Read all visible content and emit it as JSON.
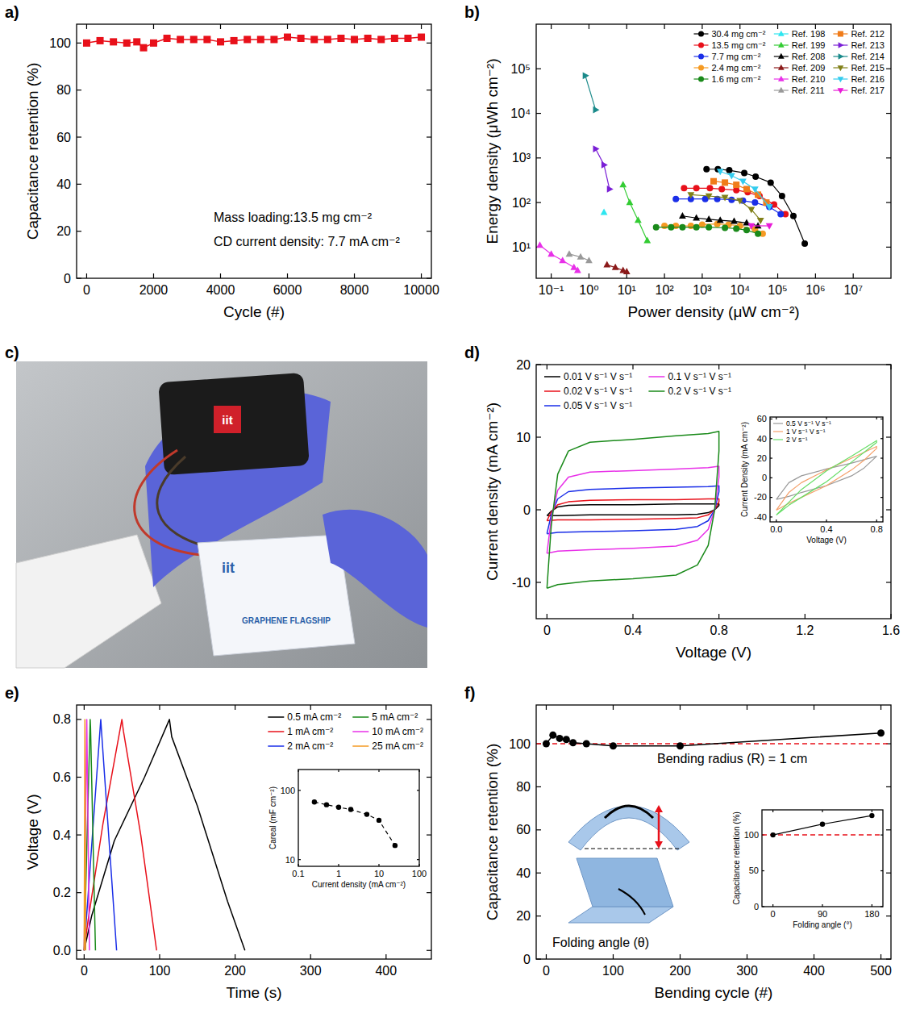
{
  "chart_data": [
    {
      "panel": "a)",
      "type": "line",
      "x_label": "Cycle (#)",
      "y_label": "Capacitance retention (%)",
      "x": [
        0,
        400,
        800,
        1200,
        1500,
        1700,
        2000,
        2400,
        2800,
        3200,
        3600,
        4000,
        4400,
        4800,
        5200,
        5600,
        6000,
        6400,
        6800,
        7200,
        7600,
        8000,
        8400,
        8800,
        9200,
        9600,
        10000
      ],
      "series": [
        {
          "color": "#e8101a",
          "marker": "square",
          "values": [
            100,
            101,
            100.5,
            100,
            100.5,
            98,
            100,
            102,
            101.5,
            101.5,
            101.5,
            100.5,
            101,
            101.5,
            101.5,
            101.5,
            102.5,
            102,
            101.5,
            101.5,
            102,
            101.5,
            102,
            101.5,
            102,
            102,
            102.5
          ]
        }
      ],
      "xlim": [
        -300,
        10300
      ],
      "xticks": [
        0,
        2000,
        4000,
        6000,
        8000,
        10000
      ],
      "ylim": [
        0,
        108
      ],
      "yticks": [
        0,
        20,
        40,
        60,
        80,
        100
      ],
      "annotations": [
        "Mass loading:13.5 mg cm⁻²",
        "CD current density: 7.7 mA cm⁻²"
      ]
    },
    {
      "panel": "b)",
      "type": "line",
      "log": true,
      "legend": "upper right",
      "x_label": "Power density (μW cm⁻²)",
      "y_label": "Energy density (μWh cm⁻²)",
      "series": [
        {
          "name": "30.4 mg cm⁻²",
          "color": "#000000",
          "marker": "circle",
          "x": [
            1300,
            2600,
            5200,
            13000,
            26000,
            65000,
            130000,
            260000,
            520000
          ],
          "values": [
            560,
            560,
            530,
            460,
            380,
            280,
            140,
            50,
            12
          ]
        },
        {
          "name": "13.5 mg cm⁻²",
          "color": "#e8101a",
          "marker": "circle",
          "x": [
            330,
            700,
            1600,
            3300,
            8000,
            16000,
            33000,
            80000,
            160000
          ],
          "values": [
            210,
            210,
            210,
            200,
            190,
            170,
            140,
            90,
            55
          ]
        },
        {
          "name": "7.7 mg cm⁻²",
          "color": "#1a2ee8",
          "marker": "circle",
          "x": [
            200,
            500,
            1200,
            2500,
            6000,
            12000,
            25000,
            60000,
            120000
          ],
          "values": [
            120,
            120,
            120,
            120,
            115,
            110,
            100,
            80,
            55
          ]
        },
        {
          "name": "2.4 mg cm⁻²",
          "color": "#f59a23",
          "marker": "circle",
          "x": [
            100,
            200,
            500,
            1000,
            2500,
            5000,
            10000,
            25000,
            40000
          ],
          "values": [
            30,
            30,
            30,
            32,
            33,
            32,
            30,
            25,
            20
          ]
        },
        {
          "name": "1.6 mg cm⁻²",
          "color": "#1a8a1a",
          "marker": "circle",
          "x": [
            60,
            150,
            300,
            700,
            1500,
            4000,
            8000,
            15000,
            30000
          ],
          "values": [
            28,
            28,
            28,
            28,
            28,
            27,
            26,
            24,
            20
          ]
        },
        {
          "name": "Ref. 198",
          "color": "#2ee6f0",
          "marker": "triangle-up",
          "x": [
            2.5
          ],
          "values": [
            60
          ]
        },
        {
          "name": "Ref. 199",
          "color": "#33cc33",
          "marker": "triangle-up",
          "x": [
            8,
            12,
            20,
            35
          ],
          "values": [
            250,
            100,
            40,
            14
          ]
        },
        {
          "name": "Ref. 208",
          "color": "#000000",
          "marker": "triangle-up",
          "x": [
            300,
            700,
            1500,
            3000,
            7000,
            15000,
            30000
          ],
          "values": [
            50,
            45,
            42,
            40,
            38,
            35,
            30
          ]
        },
        {
          "name": "Ref. 209",
          "color": "#8b1a1a",
          "marker": "triangle-up",
          "x": [
            3,
            5,
            8,
            10
          ],
          "values": [
            4,
            3.5,
            3,
            2.8
          ]
        },
        {
          "name": "Ref. 210",
          "color": "#e830e8",
          "marker": "triangle-up",
          "x": [
            0.05,
            0.1,
            0.2,
            0.4,
            0.5
          ],
          "values": [
            11,
            7,
            5,
            3.5,
            3
          ]
        },
        {
          "name": "Ref. 211",
          "color": "#999999",
          "marker": "triangle-up",
          "x": [
            0.3,
            0.6,
            1
          ],
          "values": [
            7,
            6,
            5
          ]
        },
        {
          "name": "Ref. 212",
          "color": "#f07c1a",
          "marker": "square",
          "x": [
            2000,
            4000,
            8000,
            15000,
            30000,
            50000
          ],
          "values": [
            300,
            280,
            250,
            200,
            150,
            100
          ]
        },
        {
          "name": "Ref. 213",
          "color": "#7a1fd6",
          "marker": "triangle-right",
          "x": [
            1.5,
            2.5,
            3.5
          ],
          "values": [
            1600,
            700,
            200
          ]
        },
        {
          "name": "Ref. 214",
          "color": "#1a8a8a",
          "marker": "triangle-right",
          "x": [
            0.8,
            1.5
          ],
          "values": [
            70000,
            12000
          ]
        },
        {
          "name": "Ref. 215",
          "color": "#808019",
          "marker": "triangle-down",
          "x": [
            500,
            1500,
            4000,
            10000,
            20000,
            35000
          ],
          "values": [
            150,
            140,
            130,
            110,
            70,
            40
          ]
        },
        {
          "name": "Ref. 216",
          "color": "#33ccee",
          "marker": "triangle-down",
          "x": [
            3000,
            6000,
            12000,
            25000,
            60000
          ],
          "values": [
            500,
            400,
            300,
            200,
            80
          ]
        },
        {
          "name": "Ref. 217",
          "color": "#e81ad6",
          "marker": "triangle-down",
          "x": [
            20000,
            60000
          ],
          "values": [
            30,
            30
          ]
        }
      ],
      "xlim": [
        0.04,
        100000000
      ],
      "xticks": [
        {
          "value": 0.1,
          "label": "10⁻¹"
        },
        {
          "value": 1,
          "label": "10⁰"
        },
        {
          "value": 10,
          "label": "10¹"
        },
        {
          "value": 100,
          "label": "10²"
        },
        {
          "value": 1000,
          "label": "10³"
        },
        {
          "value": 10000,
          "label": "10⁴"
        },
        {
          "value": 100000,
          "label": "10⁵"
        },
        {
          "value": 1000000,
          "label": "10⁶"
        },
        {
          "value": 10000000,
          "label": "10⁷"
        }
      ],
      "ylim": [
        2,
        1000000
      ],
      "yticks": [
        {
          "value": 10,
          "label": "10¹"
        },
        {
          "value": 100,
          "label": "10²"
        },
        {
          "value": 1000,
          "label": "10³"
        },
        {
          "value": 10000,
          "label": "10⁴"
        },
        {
          "value": 100000,
          "label": "10⁵"
        }
      ]
    },
    {
      "panel": "d)",
      "type": "line",
      "legend": "upper left",
      "x_label": "Voltage (V)",
      "y_label": "Current density (mA cm⁻²)",
      "x": [
        0,
        0.02,
        0.05,
        0.1,
        0.2,
        0.4,
        0.6,
        0.75,
        0.8,
        0.8,
        0.78,
        0.75,
        0.7,
        0.6,
        0.4,
        0.2,
        0.05,
        0
      ],
      "series": [
        {
          "name": "0.01 V s⁻¹ V s⁻¹",
          "color": "#000000",
          "values": [
            -0.8,
            -0.2,
            0.4,
            0.6,
            0.7,
            0.7,
            0.8,
            0.8,
            0.8,
            0.6,
            0,
            -0.4,
            -0.6,
            -0.7,
            -0.7,
            -0.7,
            -0.8,
            -0.8
          ]
        },
        {
          "name": "0.02 V s⁻¹ V s⁻¹",
          "color": "#e8101a",
          "values": [
            -1.5,
            -0.3,
            0.7,
            1.1,
            1.3,
            1.4,
            1.4,
            1.5,
            1.5,
            1.1,
            0,
            -0.7,
            -1.1,
            -1.2,
            -1.3,
            -1.4,
            -1.4,
            -1.5
          ]
        },
        {
          "name": "0.05 V s⁻¹ V s⁻¹",
          "color": "#1a2ee8",
          "values": [
            -3.3,
            -0.7,
            1.5,
            2.5,
            2.8,
            3.0,
            3.1,
            3.2,
            3.3,
            2.5,
            0,
            -1.5,
            -2.3,
            -2.7,
            -2.9,
            -3.0,
            -3.1,
            -3.3
          ]
        },
        {
          "name": "0.1 V s⁻¹ V s⁻¹",
          "color": "#e830e8",
          "values": [
            -6.0,
            -1.2,
            2.7,
            4.5,
            5.2,
            5.4,
            5.6,
            5.8,
            6.0,
            4.5,
            0,
            -2.7,
            -4.2,
            -5.0,
            -5.3,
            -5.5,
            -5.7,
            -6.0
          ]
        },
        {
          "name": "0.2 V s⁻¹ V s⁻¹",
          "color": "#1a8a1a",
          "values": [
            -10.8,
            -2.2,
            4.9,
            8.1,
            9.3,
            9.7,
            10.2,
            10.5,
            10.8,
            8.1,
            0,
            -4.9,
            -7.6,
            -9.0,
            -9.5,
            -9.8,
            -10.3,
            -10.8
          ]
        }
      ],
      "xlim": [
        -0.05,
        1.6
      ],
      "xticks": [
        0,
        0.4,
        0.8,
        1.2,
        1.6
      ],
      "ylim": [
        -15,
        20
      ],
      "yticks": [
        -10,
        0,
        10,
        20
      ]
    },
    {
      "type": "line",
      "legend": "upper left",
      "x_label": "Voltage (V)",
      "y_label": "Current Density (mA cm⁻²)",
      "x": [
        0,
        0.1,
        0.2,
        0.4,
        0.6,
        0.8,
        0.8,
        0.7,
        0.6,
        0.4,
        0.2,
        0.1,
        0
      ],
      "series": [
        {
          "name": "0.5 V s⁻¹ V s⁻¹",
          "color": "#999999",
          "values": [
            -22,
            -5,
            2,
            9,
            15,
            22,
            22,
            10,
            2,
            -8,
            -15,
            -19,
            -22
          ]
        },
        {
          "name": "1 V s⁻¹ V s⁻¹",
          "color": "#f5a06a",
          "values": [
            -33,
            -15,
            -5,
            8,
            20,
            32,
            30,
            18,
            8,
            -8,
            -20,
            -26,
            -33
          ]
        },
        {
          "name": "2 V s⁻¹",
          "color": "#66dd66",
          "values": [
            -38,
            -25,
            -12,
            7,
            22,
            38,
            36,
            26,
            16,
            -4,
            -20,
            -28,
            -38
          ]
        }
      ],
      "xlim": [
        -0.05,
        0.85
      ],
      "xticks": [
        {
          "value": 0,
          "label": "0.0"
        },
        0.4,
        0.8
      ],
      "ylim": [
        -45,
        62
      ],
      "yticks": [
        -40,
        -20,
        0,
        20,
        40,
        60
      ]
    },
    {
      "panel": "e)",
      "type": "line",
      "legend": "upper right",
      "x_label": "Time (s)",
      "y_label": "Voltage (V)",
      "series": [
        {
          "name": "0.5 mA cm⁻²",
          "color": "#000000",
          "x": [
            0,
            10,
            40,
            80,
            113,
            116,
            150,
            190,
            213
          ],
          "values": [
            0,
            0.12,
            0.38,
            0.6,
            0.8,
            0.74,
            0.5,
            0.17,
            0
          ]
        },
        {
          "name": "1 mA cm⁻²",
          "color": "#e8101a",
          "x": [
            0,
            5,
            25,
            50,
            52,
            75,
            96
          ],
          "values": [
            0,
            0.1,
            0.44,
            0.8,
            0.76,
            0.4,
            0
          ]
        },
        {
          "name": "2 mA cm⁻²",
          "color": "#1a2ee8",
          "x": [
            0,
            22,
            23,
            43
          ],
          "values": [
            0,
            0.8,
            0.76,
            0
          ]
        },
        {
          "name": "5 mA cm⁻²",
          "color": "#1a8a1a",
          "x": [
            0,
            8,
            8.5,
            15
          ],
          "values": [
            0,
            0.8,
            0.77,
            0
          ]
        },
        {
          "name": "10 mA cm⁻²",
          "color": "#e830e8",
          "x": [
            0,
            3.5,
            7
          ],
          "values": [
            0,
            0.8,
            0
          ]
        },
        {
          "name": "25 mA cm⁻²",
          "color": "#f59a23",
          "x": [
            0,
            1,
            2
          ],
          "values": [
            0,
            0.8,
            0
          ]
        }
      ],
      "xlim": [
        -10,
        460
      ],
      "xticks": [
        0,
        100,
        200,
        300,
        400
      ],
      "ylim": [
        -0.03,
        0.85
      ],
      "yticks": [
        {
          "value": 0,
          "label": "0.0"
        },
        0.2,
        0.4,
        0.6,
        0.8
      ]
    },
    {
      "type": "line",
      "log": true,
      "x_label": "Current density (mA cm⁻²)",
      "y_label": "Careal (mF cm⁻²)",
      "series": [
        {
          "color": "#000000",
          "marker": "circle",
          "line_style": "dashed",
          "x": [
            0.25,
            0.5,
            1,
            2,
            5,
            10,
            25
          ],
          "values": [
            68,
            62,
            57,
            53,
            45,
            37,
            16
          ]
        }
      ],
      "xlim": [
        0.1,
        100
      ],
      "xticks": [
        0.1,
        1,
        10,
        100
      ],
      "ylim": [
        8,
        200
      ],
      "yticks": [
        10,
        100
      ]
    },
    {
      "panel": "f)",
      "type": "line",
      "x_label": "Bending cycle (#)",
      "y_label": "Capacitance retention (%)",
      "x": [
        0,
        10,
        20,
        30,
        40,
        60,
        100,
        200,
        500
      ],
      "series": [
        {
          "color": "#000000",
          "marker": "circle",
          "values": [
            100,
            104,
            102.5,
            102,
            100.5,
            100,
            99,
            99,
            105
          ]
        }
      ],
      "hline": 100,
      "xlim": [
        -15,
        515
      ],
      "xticks": [
        0,
        100,
        200,
        300,
        400,
        500
      ],
      "ylim": [
        0,
        118
      ],
      "yticks": [
        0,
        20,
        40,
        60,
        80,
        100
      ],
      "annotations": [
        "Bending radius (R) = 1 cm",
        "Folding angle (θ)"
      ]
    },
    {
      "type": "line",
      "x_label": "Folding angle (°)",
      "y_label": "Capacitance retention (%)",
      "x": [
        0,
        90,
        180
      ],
      "series": [
        {
          "color": "#000000",
          "marker": "circle",
          "values": [
            100,
            115,
            127
          ]
        }
      ],
      "hline": 100,
      "xlim": [
        -20,
        200
      ],
      "xticks": [
        0,
        90,
        180
      ],
      "ylim": [
        0,
        135
      ],
      "yticks": [
        0,
        50,
        100
      ]
    }
  ],
  "photo": {
    "panel": "c)",
    "texts": [
      "iit",
      "iit",
      "GRAPHENE FLAGSHIP"
    ]
  }
}
